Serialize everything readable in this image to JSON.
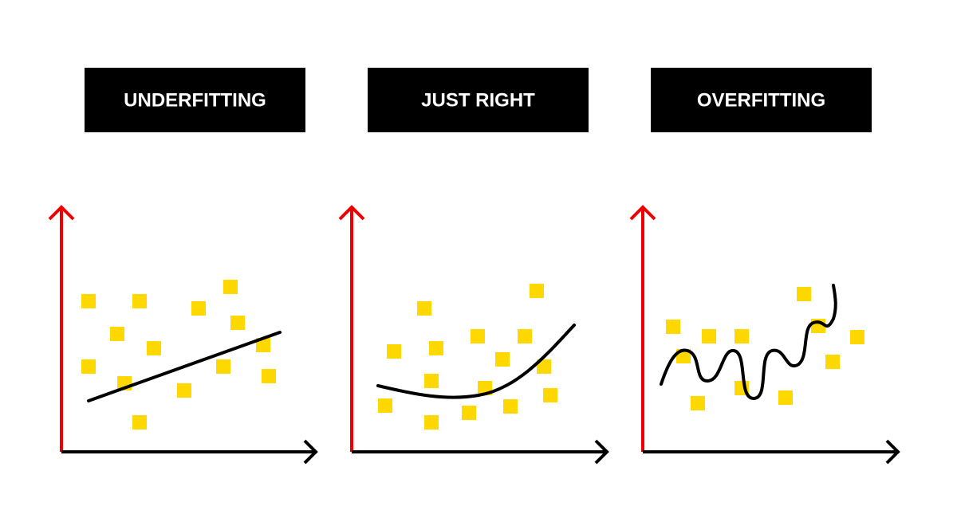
{
  "panels": [
    {
      "title": "UNDERFITTING"
    },
    {
      "title": "JUST RIGHT"
    },
    {
      "title": "OVERFITTING"
    }
  ]
}
